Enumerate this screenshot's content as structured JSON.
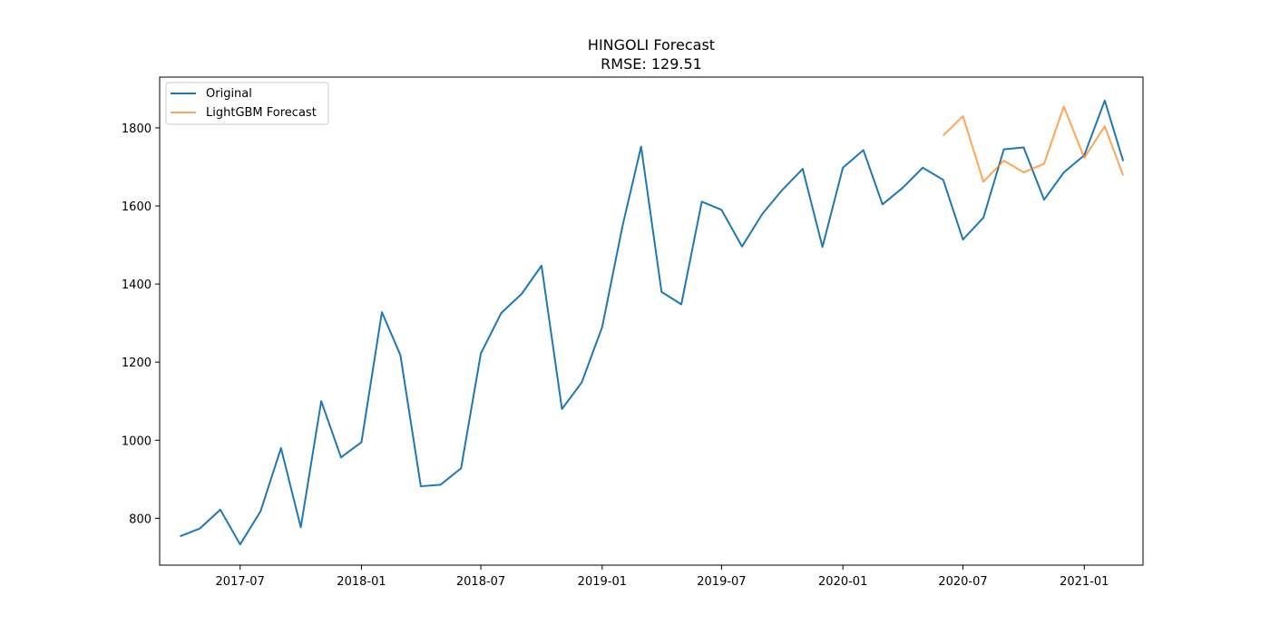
{
  "title": "HINGOLI Forecast",
  "subtitle": "RMSE: 129.51",
  "chart_data": {
    "type": "line",
    "title": "HINGOLI Forecast",
    "subtitle": "RMSE: 129.51",
    "xlabel": "",
    "ylabel": "",
    "x_type": "date",
    "xlim": [
      "2017-03-01",
      "2021-03-31"
    ],
    "ylim": [
      680,
      1930
    ],
    "x_ticks": [
      "2017-07-01",
      "2018-01-01",
      "2018-07-01",
      "2019-01-01",
      "2019-07-01",
      "2020-01-01",
      "2020-07-01",
      "2021-01-01"
    ],
    "x_tick_labels": [
      "2017-07",
      "2018-01",
      "2018-07",
      "2019-01",
      "2019-07",
      "2020-01",
      "2020-07",
      "2021-01"
    ],
    "y_ticks": [
      800,
      1000,
      1200,
      1400,
      1600,
      1800
    ],
    "y_tick_labels": [
      "800",
      "1000",
      "1200",
      "1400",
      "1600",
      "1800"
    ],
    "grid": false,
    "legend_position": "top-left",
    "series": [
      {
        "name": "Original",
        "color": "#1f77b4",
        "x": [
          "2017-04-01",
          "2017-05-01",
          "2017-06-01",
          "2017-07-01",
          "2017-08-01",
          "2017-09-01",
          "2017-10-01",
          "2017-11-01",
          "2017-12-01",
          "2018-01-01",
          "2018-02-01",
          "2018-03-01",
          "2018-04-01",
          "2018-05-01",
          "2018-06-01",
          "2018-07-01",
          "2018-08-01",
          "2018-09-01",
          "2018-10-01",
          "2018-11-01",
          "2018-12-01",
          "2019-01-01",
          "2019-02-01",
          "2019-03-01",
          "2019-04-01",
          "2019-05-01",
          "2019-06-01",
          "2019-07-01",
          "2019-08-01",
          "2019-09-01",
          "2019-10-01",
          "2019-11-01",
          "2019-12-01",
          "2020-01-01",
          "2020-02-01",
          "2020-03-01",
          "2020-04-01",
          "2020-05-01",
          "2020-06-01",
          "2020-07-01",
          "2020-08-01",
          "2020-09-01",
          "2020-10-01",
          "2020-11-01",
          "2020-12-01",
          "2021-01-01",
          "2021-02-01",
          "2021-03-01"
        ],
        "y": [
          754,
          774,
          822,
          733,
          818,
          980,
          777,
          1100,
          956,
          995,
          1328,
          1218,
          882,
          886,
          928,
          1222,
          1326,
          1375,
          1447,
          1080,
          1148,
          1290,
          1550,
          1752,
          1380,
          1348,
          1611,
          1590,
          1496,
          1580,
          1641,
          1695,
          1495,
          1698,
          1743,
          1604,
          1647,
          1698,
          1667,
          1514,
          1570,
          1745,
          1750,
          1616,
          1686,
          1730,
          1870,
          1715
        ]
      },
      {
        "name": "LightGBM Forecast",
        "color": "#ff7f0e",
        "x": [
          "2020-06-01",
          "2020-07-01",
          "2020-08-01",
          "2020-09-01",
          "2020-10-01",
          "2020-11-01",
          "2020-12-01",
          "2021-01-01",
          "2021-02-01",
          "2021-03-01"
        ],
        "y": [
          1780,
          1830,
          1662,
          1716,
          1686,
          1708,
          1855,
          1723,
          1804,
          1678
        ]
      }
    ]
  }
}
